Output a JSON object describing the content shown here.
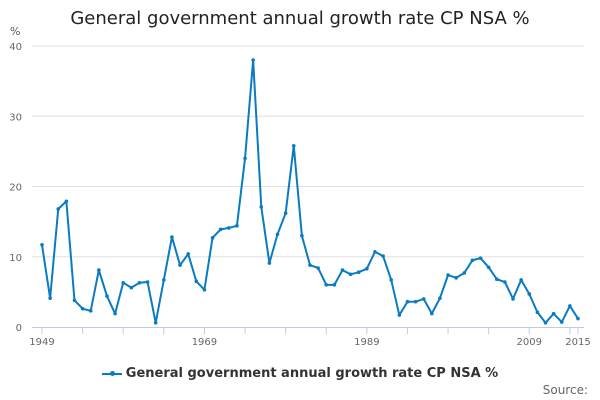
{
  "chart_data": {
    "type": "line",
    "title": "General government annual growth rate CP NSA %",
    "ylabel": "%",
    "xlabel": "",
    "ylim": [
      0,
      40
    ],
    "yticks": [
      0,
      10,
      20,
      30,
      40
    ],
    "xticks_labeled": [
      1949,
      1969,
      1989,
      2009,
      2015
    ],
    "grid": true,
    "legend_position": "bottom",
    "source_label": "Source:",
    "color": "#0a7bc2",
    "x": [
      1949,
      1950,
      1951,
      1952,
      1953,
      1954,
      1955,
      1956,
      1957,
      1958,
      1959,
      1960,
      1961,
      1962,
      1963,
      1964,
      1965,
      1966,
      1967,
      1968,
      1969,
      1970,
      1971,
      1972,
      1973,
      1974,
      1975,
      1976,
      1977,
      1978,
      1979,
      1980,
      1981,
      1982,
      1983,
      1984,
      1985,
      1986,
      1987,
      1988,
      1989,
      1990,
      1991,
      1992,
      1993,
      1994,
      1995,
      1996,
      1997,
      1998,
      1999,
      2000,
      2001,
      2002,
      2003,
      2004,
      2005,
      2006,
      2007,
      2008,
      2009,
      2010,
      2011,
      2012,
      2013,
      2014,
      2015
    ],
    "series": [
      {
        "name": "General government annual growth rate CP NSA %",
        "values": [
          11.7,
          4.1,
          16.8,
          17.9,
          3.8,
          2.6,
          2.3,
          8.1,
          4.4,
          1.9,
          6.3,
          5.6,
          6.3,
          6.4,
          0.6,
          6.7,
          12.8,
          8.8,
          10.4,
          6.5,
          5.3,
          12.7,
          13.9,
          14.1,
          14.4,
          24.0,
          38.0,
          17.1,
          9.1,
          13.2,
          16.2,
          25.8,
          13.0,
          8.8,
          8.4,
          6.0,
          6.0,
          8.1,
          7.5,
          7.8,
          8.3,
          10.7,
          10.1,
          6.7,
          1.7,
          3.6,
          3.6,
          4.0,
          1.9,
          4.1,
          7.4,
          7.0,
          7.7,
          9.5,
          9.8,
          8.5,
          6.8,
          6.4,
          4.0,
          6.7,
          4.7,
          2.1,
          0.6,
          1.9,
          0.7,
          3.0,
          1.2
        ]
      }
    ]
  }
}
